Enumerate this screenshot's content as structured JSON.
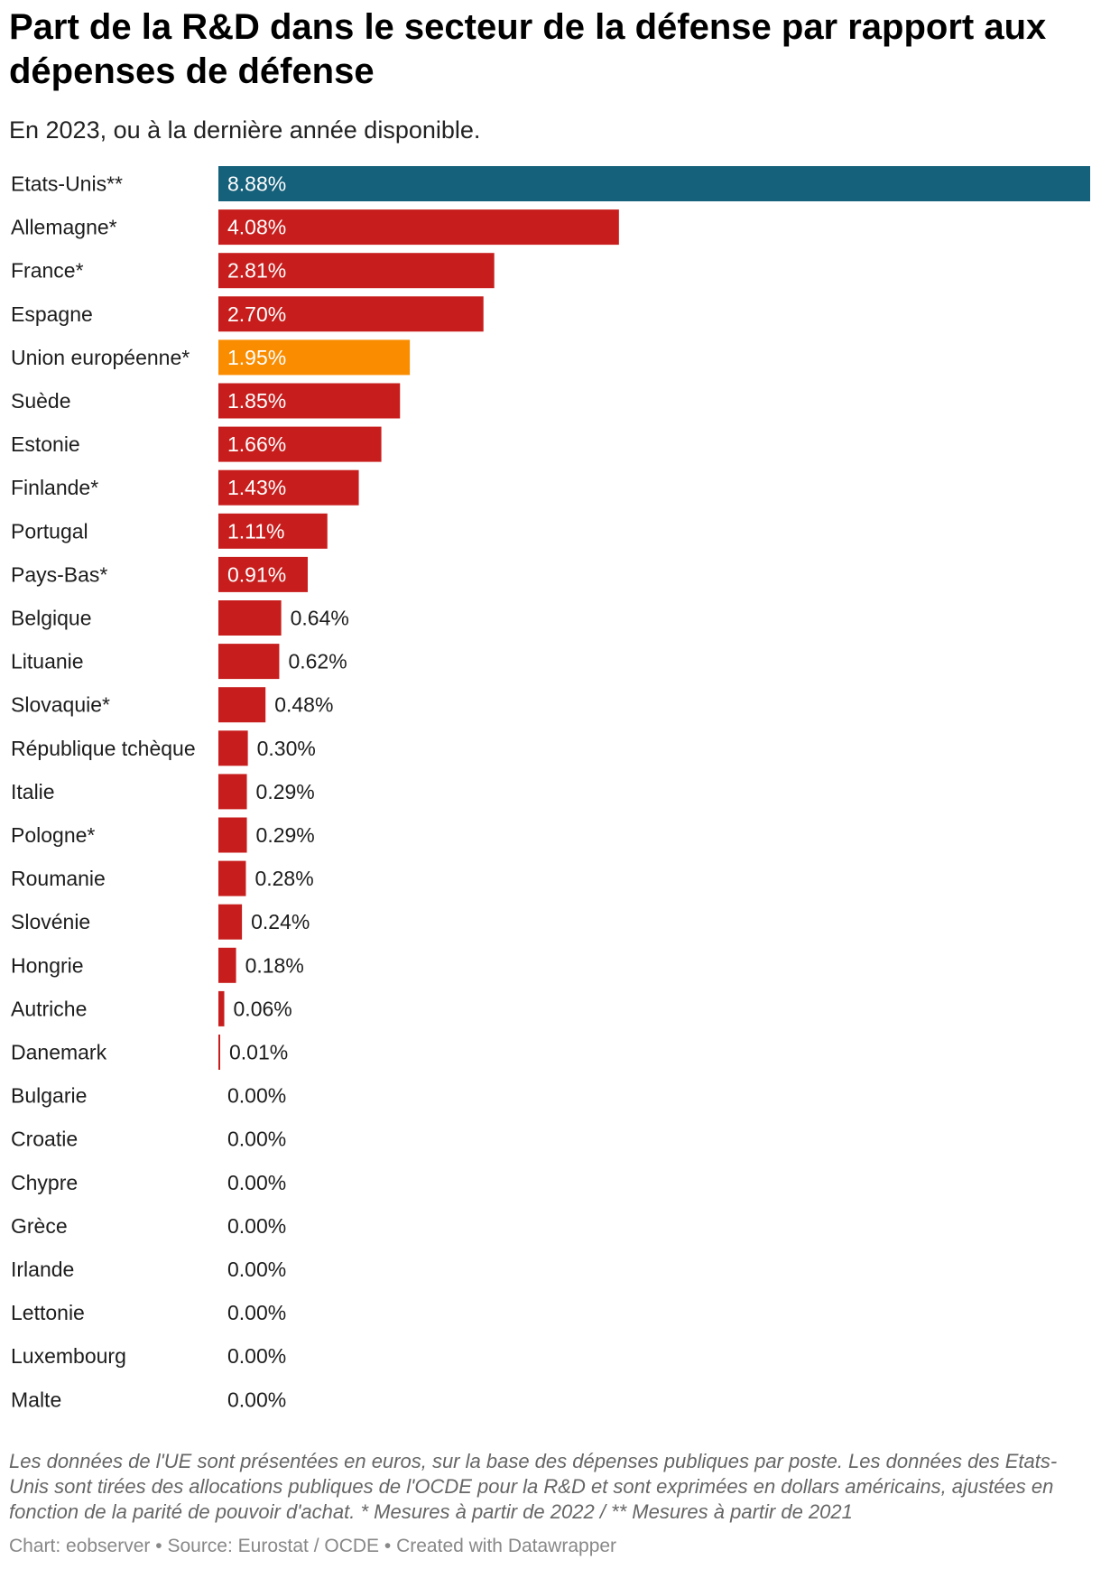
{
  "header": {
    "title": "Part de la R&D dans le secteur de la défense par rapport aux dépenses de défense",
    "subtitle": "En 2023, ou à la dernière année disponible."
  },
  "footer": {
    "notes": "Les données de l'UE sont présentées en euros, sur la base des dépenses publiques par poste. Les données des Etats-Unis sont tirées des allocations publiques de l'OCDE pour la R&D et sont exprimées en dollars américains, ajustées en fonction de la parité de pouvoir d'achat. * Mesures à partir de 2022 / ** Mesures à partir de 2021",
    "credit": "Chart: eobserver",
    "source": "Source: Eurostat / OCDE",
    "created_with": "Created with Datawrapper",
    "separator": "•"
  },
  "colors": {
    "default_bar": "#c71e1d",
    "usa_bar": "#15607a",
    "eu_bar": "#fa8c00",
    "label_inside": "#ffffff",
    "label_outside": "#1d1d1d"
  },
  "chart_data": {
    "type": "bar",
    "orientation": "horizontal",
    "title": "Part de la R&D dans le secteur de la défense par rapport aux dépenses de défense",
    "subtitle": "En 2023, ou à la dernière année disponible.",
    "xlabel": "",
    "ylabel": "",
    "xlim": [
      0,
      8.88
    ],
    "unit": "%",
    "grid": false,
    "categories": [
      "Etats-Unis**",
      "Allemagne*",
      "France*",
      "Espagne",
      "Union européenne*",
      "Suède",
      "Estonie",
      "Finlande*",
      "Portugal",
      "Pays-Bas*",
      "Belgique",
      "Lituanie",
      "Slovaquie*",
      "République tchèque",
      "Italie",
      "Pologne*",
      "Roumanie",
      "Slovénie",
      "Hongrie",
      "Autriche",
      "Danemark",
      "Bulgarie",
      "Croatie",
      "Chypre",
      "Grèce",
      "Irlande",
      "Lettonie",
      "Luxembourg",
      "Malte"
    ],
    "values": [
      8.88,
      4.08,
      2.81,
      2.7,
      1.95,
      1.85,
      1.66,
      1.43,
      1.11,
      0.91,
      0.64,
      0.62,
      0.48,
      0.3,
      0.29,
      0.29,
      0.28,
      0.24,
      0.18,
      0.06,
      0.01,
      0.0,
      0.0,
      0.0,
      0.0,
      0.0,
      0.0,
      0.0,
      0.0
    ],
    "value_labels": [
      "8.88%",
      "4.08%",
      "2.81%",
      "2.70%",
      "1.95%",
      "1.85%",
      "1.66%",
      "1.43%",
      "1.11%",
      "0.91%",
      "0.64%",
      "0.62%",
      "0.48%",
      "0.30%",
      "0.29%",
      "0.29%",
      "0.28%",
      "0.24%",
      "0.18%",
      "0.06%",
      "0.01%",
      "0.00%",
      "0.00%",
      "0.00%",
      "0.00%",
      "0.00%",
      "0.00%",
      "0.00%",
      "0.00%"
    ],
    "highlights": {
      "Etats-Unis**": "#15607a",
      "Union européenne*": "#fa8c00"
    }
  }
}
